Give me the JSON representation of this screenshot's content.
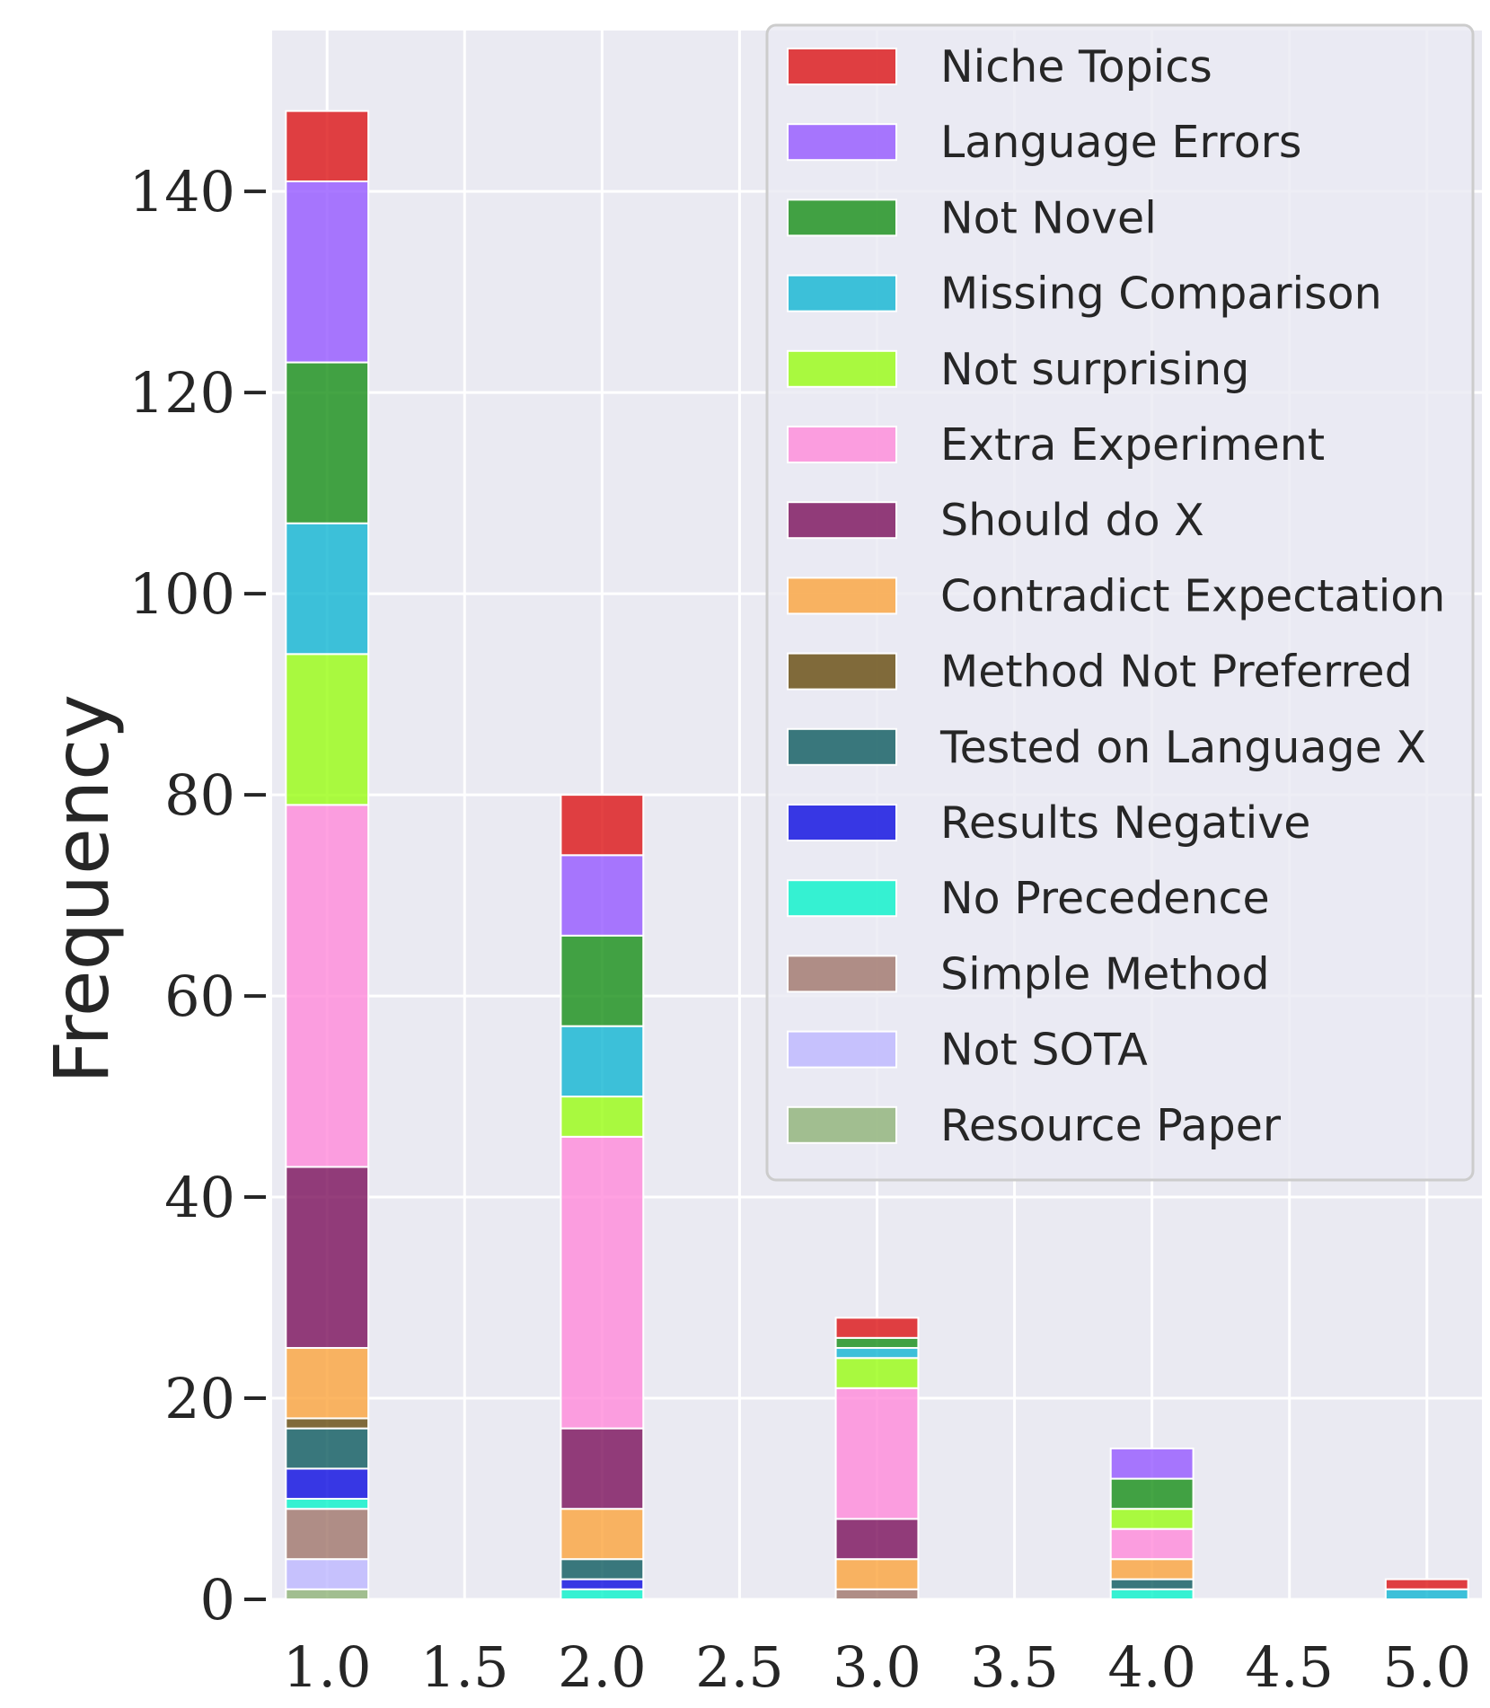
{
  "chart_data": {
    "type": "bar",
    "stacked": true,
    "title": "",
    "xlabel": "",
    "ylabel": "Frequency",
    "x": [
      1.0,
      2.0,
      3.0,
      4.0,
      5.0
    ],
    "xlim": [
      0.8,
      5.2
    ],
    "ylim": [
      0,
      156
    ],
    "xticks": [
      "1.0",
      "1.5",
      "2.0",
      "2.5",
      "3.0",
      "3.5",
      "4.0",
      "4.5",
      "5.0"
    ],
    "yticks": [
      "0",
      "20",
      "40",
      "60",
      "80",
      "100",
      "120",
      "140"
    ],
    "grid": true,
    "legend_position": "top-right",
    "series": [
      {
        "name": "Resource Paper",
        "color": "#8fb377",
        "values": [
          1,
          0,
          0,
          0,
          0
        ]
      },
      {
        "name": "Not SOTA",
        "color": "#bdb6ff",
        "values": [
          3,
          0,
          0,
          0,
          0
        ]
      },
      {
        "name": "Simple Method",
        "color": "#a0766a",
        "values": [
          5,
          0,
          1,
          0,
          0
        ]
      },
      {
        "name": "No Precedence",
        "color": "#08f2c9",
        "values": [
          1,
          1,
          0,
          1,
          0
        ]
      },
      {
        "name": "Results Negative",
        "color": "#0a0ae0",
        "values": [
          3,
          1,
          0,
          0,
          0
        ]
      },
      {
        "name": "Tested on Language X",
        "color": "#0d5a5e",
        "values": [
          4,
          2,
          0,
          1,
          0
        ]
      },
      {
        "name": "Method Not Preferred",
        "color": "#654a0b",
        "values": [
          1,
          0,
          0,
          0,
          0
        ]
      },
      {
        "name": "Contradict Expectation",
        "color": "#fba43c",
        "values": [
          7,
          5,
          3,
          2,
          0
        ]
      },
      {
        "name": "Should do X",
        "color": "#7b0f5a",
        "values": [
          18,
          8,
          4,
          0,
          0
        ]
      },
      {
        "name": "Extra Experiment",
        "color": "#ff8ad9",
        "values": [
          36,
          29,
          13,
          3,
          0
        ]
      },
      {
        "name": "Not surprising",
        "color": "#98fd12",
        "values": [
          15,
          4,
          3,
          2,
          0
        ]
      },
      {
        "name": "Missing Comparison",
        "color": "#10b5d2",
        "values": [
          13,
          7,
          1,
          0,
          1
        ]
      },
      {
        "name": "Not Novel",
        "color": "#168f16",
        "values": [
          16,
          9,
          1,
          3,
          0
        ]
      },
      {
        "name": "Language Errors",
        "color": "#9557ff",
        "values": [
          18,
          8,
          0,
          3,
          0
        ]
      },
      {
        "name": "Niche Topics",
        "color": "#dc1314",
        "values": [
          7,
          6,
          2,
          0,
          1
        ]
      }
    ]
  }
}
